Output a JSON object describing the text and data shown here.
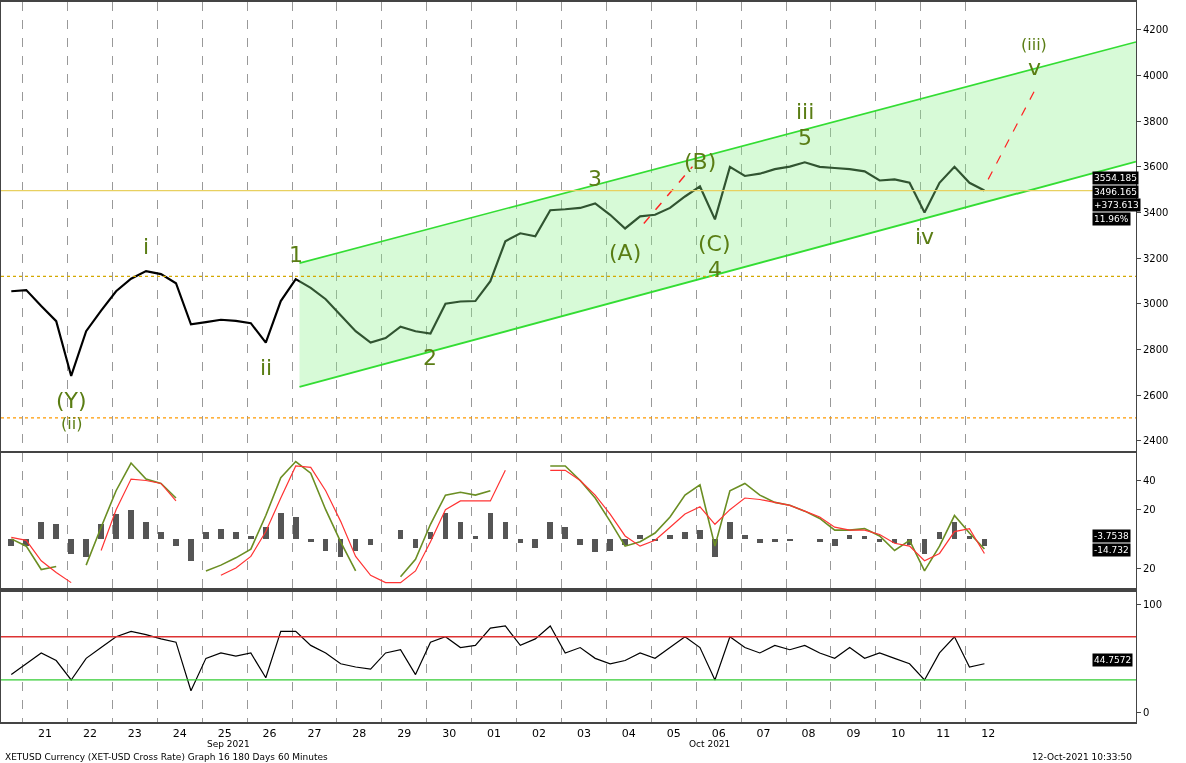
{
  "chart_data": [
    {
      "type": "line",
      "tick_labels": "y",
      "grid": "x",
      "xlim": [
        "2021-09-20T12:30",
        "2021-10-15T19:00"
      ],
      "ylim": [
        2356,
        4322
      ],
      "yticks": [
        2400,
        2600,
        2800,
        3000,
        3200,
        3400,
        3600,
        3800,
        4000,
        4200
      ],
      "xticks": [
        {
          "value": "2021-09-21T00:00",
          "label": null
        },
        {
          "value": "2021-09-22T00:00",
          "label": null
        },
        {
          "value": "2021-09-23T00:00",
          "label": null
        },
        {
          "value": "2021-09-24T00:00",
          "label": null
        },
        {
          "value": "2021-09-25T00:00",
          "label": null
        },
        {
          "value": "2021-09-26T00:00",
          "label": null
        },
        {
          "value": "2021-09-27T00:00",
          "label": null
        },
        {
          "value": "2021-09-28T00:00",
          "label": null
        },
        {
          "value": "2021-09-29T00:00",
          "label": null
        },
        {
          "value": "2021-09-30T00:00",
          "label": null
        },
        {
          "value": "2021-10-01T00:00",
          "label": null
        },
        {
          "value": "2021-10-02T00:00",
          "label": null
        },
        {
          "value": "2021-10-03T00:00",
          "label": null
        },
        {
          "value": "2021-10-04T00:00",
          "label": null
        },
        {
          "value": "2021-10-05T00:00",
          "label": null
        },
        {
          "value": "2021-10-06T00:00",
          "label": null
        },
        {
          "value": "2021-10-07T00:00",
          "label": null
        },
        {
          "value": "2021-10-08T00:00",
          "label": null
        },
        {
          "value": "2021-10-09T00:00",
          "label": null
        },
        {
          "value": "2021-10-10T00:00",
          "label": null
        },
        {
          "value": "2021-10-11T00:00",
          "label": null
        },
        {
          "value": "2021-10-12T00:00",
          "label": null
        }
      ],
      "x": [
        "2021-09-20T18:00",
        "2021-09-21T02:00",
        "2021-09-21T10:00",
        "2021-09-21T18:00",
        "2021-09-22T02:00",
        "2021-09-22T10:00",
        "2021-09-22T18:00",
        "2021-09-23T02:00",
        "2021-09-23T10:00",
        "2021-09-23T18:00",
        "2021-09-24T02:00",
        "2021-09-24T10:00",
        "2021-09-24T18:00",
        "2021-09-25T02:00",
        "2021-09-25T10:00",
        "2021-09-25T18:00",
        "2021-09-26T02:00",
        "2021-09-26T10:00",
        "2021-09-26T18:00",
        "2021-09-27T02:00",
        "2021-09-27T10:00",
        "2021-09-27T18:00",
        "2021-09-28T02:00",
        "2021-09-28T10:00",
        "2021-09-28T18:00",
        "2021-09-29T02:00",
        "2021-09-29T10:00",
        "2021-09-29T18:00",
        "2021-09-30T02:00",
        "2021-09-30T10:00",
        "2021-09-30T18:00",
        "2021-10-01T02:00",
        "2021-10-01T10:00",
        "2021-10-01T18:00",
        "2021-10-02T02:00",
        "2021-10-02T10:00",
        "2021-10-02T18:00",
        "2021-10-03T02:00",
        "2021-10-03T10:00",
        "2021-10-03T18:00",
        "2021-10-04T02:00",
        "2021-10-04T10:00",
        "2021-10-04T18:00",
        "2021-10-05T02:00",
        "2021-10-05T10:00",
        "2021-10-05T18:00",
        "2021-10-06T02:00",
        "2021-10-06T10:00",
        "2021-10-06T18:00",
        "2021-10-07T02:00",
        "2021-10-07T10:00",
        "2021-10-07T18:00",
        "2021-10-08T02:00",
        "2021-10-08T10:00",
        "2021-10-08T18:00",
        "2021-10-09T02:00",
        "2021-10-09T10:00",
        "2021-10-09T18:00",
        "2021-10-10T02:00",
        "2021-10-10T10:00",
        "2021-10-10T18:00",
        "2021-10-11T02:00",
        "2021-10-11T10:00",
        "2021-10-11T18:00",
        "2021-10-12T02:00",
        "2021-10-12T10:00"
      ],
      "series": [
        {
          "color": "#000000",
          "values": [
            3055,
            3060,
            2990,
            2924,
            2684,
            2880,
            2970,
            3055,
            3110,
            3143,
            3130,
            3090,
            2910,
            2920,
            2930,
            2925,
            2915,
            2830,
            3012,
            3108,
            3070,
            3020,
            2950,
            2880,
            2830,
            2850,
            2900,
            2880,
            2870,
            3000,
            3010,
            3012,
            3099,
            3274,
            3309,
            3296,
            3410,
            3414,
            3420,
            3440,
            3390,
            3330,
            3383,
            3390,
            3420,
            3470,
            3514,
            3370,
            3600,
            3560,
            3570,
            3590,
            3601,
            3620,
            3600,
            3595,
            3590,
            3580,
            3540,
            3545,
            3530,
            3400,
            3530,
            3600,
            3530,
            3496
          ]
        },
        {
          "color": "#33dd33",
          "x": [
            "2021-09-27T04:00",
            "2021-10-15T19:00"
          ],
          "values": [
            2636,
            3623
          ]
        },
        {
          "type": "area",
          "color": "#33dd33",
          "x": [
            "2021-09-27T04:00",
            "2021-10-15T19:00"
          ],
          "values": [
            3178,
            4147
          ]
        },
        {
          "color": "#ff2222",
          "line_style": "dashed",
          "x": [
            "2021-10-04T20:00",
            "2021-10-05T22:00"
          ],
          "values": [
            3352,
            3601
          ]
        },
        {
          "color": "#ff2222",
          "line_style": "dashed",
          "x": [
            "2021-10-12T12:00",
            "2021-10-13T12:30"
          ],
          "values": [
            3545,
            3929
          ]
        }
      ],
      "ref_lines": [
        {
          "axis": "y",
          "value": 3120,
          "color": "#d4a800",
          "line_style": "dotted"
        },
        {
          "axis": "y",
          "value": 2500,
          "color": "#ff9900",
          "line_style": "dotted"
        },
        {
          "axis": "y",
          "value": 3496,
          "color": "#e8d060",
          "line_style": "solid"
        }
      ],
      "annotations": [
        {
          "text": "(Y)",
          "x": "2021-09-22T02:00",
          "y": 2684
        },
        {
          "text": "(ii)",
          "x": "2021-09-22T02:00",
          "y": 2684
        },
        {
          "text": "i",
          "x": "2021-09-23T18:00",
          "y": 3143
        },
        {
          "text": "ii",
          "x": "2021-09-26T10:00",
          "y": 2830
        },
        {
          "text": "1",
          "x": "2021-09-27T02:00",
          "y": 3108
        },
        {
          "text": "2",
          "x": "2021-09-30T02:00",
          "y": 2870
        },
        {
          "text": "3",
          "x": "2021-10-03T18:00",
          "y": 3440
        },
        {
          "text": "(A)",
          "x": "2021-10-04T10:00",
          "y": 3330
        },
        {
          "text": "(B)",
          "x": "2021-10-06T02:00",
          "y": 3514
        },
        {
          "text": "(C)",
          "x": "2021-10-06T10:00",
          "y": 3370
        },
        {
          "text": "4",
          "x": "2021-10-06T10:00",
          "y": 3370
        },
        {
          "text": "5",
          "x": "2021-10-08T10:00",
          "y": 3620
        },
        {
          "text": "iii",
          "x": "2021-10-08T10:00",
          "y": 3620
        },
        {
          "text": "iv",
          "x": "2021-10-11T02:00",
          "y": 3400
        },
        {
          "text": "v",
          "x": "2021-10-13T12:30",
          "y": 3929
        },
        {
          "text": "(iii)",
          "x": "2021-10-13T12:30",
          "y": 3929
        },
        "3554.185",
        "3496.165",
        "+373.613",
        "11.96%"
      ]
    },
    {
      "type": "line",
      "tick_labels": "y",
      "grid": "x",
      "xlim": [
        "2021-09-20T12:30",
        "2021-10-15T19:00"
      ],
      "ylim": [
        -34,
        59
      ],
      "yticks": [
        40,
        20,
        {
          "value": -20,
          "label": "20"
        }
      ],
      "xticks": [
        {
          "value": "2021-09-21T00:00",
          "label": null
        },
        {
          "value": "2021-09-22T00:00",
          "label": null
        },
        {
          "value": "2021-09-23T00:00",
          "label": null
        },
        {
          "value": "2021-09-24T00:00",
          "label": null
        },
        {
          "value": "2021-09-25T00:00",
          "label": null
        },
        {
          "value": "2021-09-26T00:00",
          "label": null
        },
        {
          "value": "2021-09-27T00:00",
          "label": null
        },
        {
          "value": "2021-09-28T00:00",
          "label": null
        },
        {
          "value": "2021-09-29T00:00",
          "label": null
        },
        {
          "value": "2021-09-30T00:00",
          "label": null
        },
        {
          "value": "2021-10-01T00:00",
          "label": null
        },
        {
          "value": "2021-10-02T00:00",
          "label": null
        },
        {
          "value": "2021-10-03T00:00",
          "label": null
        },
        {
          "value": "2021-10-04T00:00",
          "label": null
        },
        {
          "value": "2021-10-05T00:00",
          "label": null
        },
        {
          "value": "2021-10-06T00:00",
          "label": null
        },
        {
          "value": "2021-10-07T00:00",
          "label": null
        },
        {
          "value": "2021-10-08T00:00",
          "label": null
        },
        {
          "value": "2021-10-09T00:00",
          "label": null
        },
        {
          "value": "2021-10-10T00:00",
          "label": null
        },
        {
          "value": "2021-10-11T00:00",
          "label": null
        },
        {
          "value": "2021-10-12T00:00",
          "label": null
        }
      ],
      "x": [
        "2021-09-20T18:00",
        "2021-09-21T02:00",
        "2021-09-21T10:00",
        "2021-09-21T18:00",
        "2021-09-22T02:00",
        "2021-09-22T10:00",
        "2021-09-22T18:00",
        "2021-09-23T02:00",
        "2021-09-23T10:00",
        "2021-09-23T18:00",
        "2021-09-24T02:00",
        "2021-09-24T10:00",
        "2021-09-24T18:00",
        "2021-09-25T02:00",
        "2021-09-25T10:00",
        "2021-09-25T18:00",
        "2021-09-26T02:00",
        "2021-09-26T10:00",
        "2021-09-26T18:00",
        "2021-09-27T02:00",
        "2021-09-27T10:00",
        "2021-09-27T18:00",
        "2021-09-28T02:00",
        "2021-09-28T10:00",
        "2021-09-28T18:00",
        "2021-09-29T02:00",
        "2021-09-29T10:00",
        "2021-09-29T18:00",
        "2021-09-30T02:00",
        "2021-09-30T10:00",
        "2021-09-30T18:00",
        "2021-10-01T02:00",
        "2021-10-01T10:00",
        "2021-10-01T18:00",
        "2021-10-02T02:00",
        "2021-10-02T10:00",
        "2021-10-02T18:00",
        "2021-10-03T02:00",
        "2021-10-03T10:00",
        "2021-10-03T18:00",
        "2021-10-04T02:00",
        "2021-10-04T10:00",
        "2021-10-04T18:00",
        "2021-10-05T02:00",
        "2021-10-05T10:00",
        "2021-10-05T18:00",
        "2021-10-06T02:00",
        "2021-10-06T10:00",
        "2021-10-06T18:00",
        "2021-10-07T02:00",
        "2021-10-07T10:00",
        "2021-10-07T18:00",
        "2021-10-08T02:00",
        "2021-10-08T10:00",
        "2021-10-08T18:00",
        "2021-10-09T02:00",
        "2021-10-09T10:00",
        "2021-10-09T18:00",
        "2021-10-10T02:00",
        "2021-10-10T10:00",
        "2021-10-10T18:00",
        "2021-10-11T02:00",
        "2021-10-11T10:00",
        "2021-10-11T18:00",
        "2021-10-12T02:00",
        "2021-10-12T10:00"
      ],
      "series": [
        {
          "type": "bar",
          "color": "#555555",
          "values": [
            -5,
            -5,
            12,
            10,
            -10,
            -12,
            10,
            17,
            20,
            12,
            5,
            -5,
            -15,
            5,
            7,
            5,
            2,
            8,
            18,
            15,
            -2,
            -8,
            -12,
            -8,
            -4,
            0,
            6,
            -6,
            5,
            18,
            12,
            2,
            18,
            12,
            -3,
            -6,
            12,
            8,
            -4,
            -9,
            -8,
            -4,
            3,
            -1,
            3,
            5,
            6,
            -12,
            12,
            3,
            -3,
            -2,
            -1,
            0,
            -2,
            -5,
            3,
            2,
            -2,
            -3,
            -4,
            -10,
            5,
            12,
            2,
            -5
          ]
        },
        {
          "color": "#6b8e23",
          "values": [
            0,
            -5,
            -21,
            -19,
            null,
            -18,
            8,
            33,
            52,
            41,
            38,
            28,
            null,
            -22,
            -18,
            -13,
            -7,
            16,
            42,
            53,
            45,
            20,
            -2,
            -22,
            null,
            null,
            -26,
            -14,
            10,
            30,
            32,
            30,
            33,
            null,
            null,
            null,
            50,
            50,
            40,
            28,
            12,
            -5,
            -2,
            4,
            15,
            30,
            37,
            -5,
            33,
            38,
            30,
            25,
            23,
            19,
            14,
            6,
            6,
            7,
            2,
            -8,
            -1,
            -22,
            -5,
            16,
            4,
            -7
          ]
        },
        {
          "color": "#ff3333",
          "values": [
            1,
            -1,
            -15,
            -23,
            -30,
            null,
            -8,
            20,
            41,
            40,
            38,
            26,
            null,
            null,
            -25,
            -20,
            -12,
            5,
            28,
            50,
            49,
            33,
            12,
            -12,
            -25,
            -30,
            -30,
            -22,
            -2,
            20,
            26,
            26,
            26,
            47,
            null,
            null,
            47,
            47,
            40,
            30,
            17,
            2,
            -5,
            -1,
            8,
            17,
            22,
            10,
            20,
            28,
            27,
            25,
            23,
            19,
            15,
            8,
            6,
            6,
            3,
            -3,
            -5,
            -15,
            -10,
            5,
            7,
            -10
          ]
        }
      ],
      "annotations": [
        "-3.7538",
        "-14.732"
      ]
    },
    {
      "type": "line",
      "grid": "x",
      "xlim": [
        "2021-09-20T12:30",
        "2021-10-15T19:00"
      ],
      "ylim": [
        -9,
        111
      ],
      "yticks": [
        0,
        100
      ],
      "xticks": [
        {
          "value": "2021-09-21T00:00",
          "label": null
        },
        {
          "value": "2021-09-22T00:00",
          "label": null
        },
        {
          "value": "2021-09-23T00:00",
          "label": null
        },
        {
          "value": "2021-09-24T00:00",
          "label": null
        },
        {
          "value": "2021-09-25T00:00",
          "label": null
        },
        {
          "value": "2021-09-26T00:00",
          "label": null
        },
        {
          "value": "2021-09-27T00:00",
          "label": null
        },
        {
          "value": "2021-09-28T00:00",
          "label": null
        },
        {
          "value": "2021-09-29T00:00",
          "label": null
        },
        {
          "value": "2021-09-30T00:00",
          "label": null
        },
        {
          "value": "2021-10-01T00:00",
          "label": null
        },
        {
          "value": "2021-10-02T00:00",
          "label": null
        },
        {
          "value": "2021-10-03T00:00",
          "label": null
        },
        {
          "value": "2021-10-04T00:00",
          "label": null
        },
        {
          "value": "2021-10-05T00:00",
          "label": null
        },
        {
          "value": "2021-10-06T00:00",
          "label": null
        },
        {
          "value": "2021-10-07T00:00",
          "label": null
        },
        {
          "value": "2021-10-08T00:00",
          "label": null
        },
        {
          "value": "2021-10-09T00:00",
          "label": null
        },
        {
          "value": "2021-10-10T00:00",
          "label": null
        },
        {
          "value": "2021-10-11T00:00",
          "label": null
        },
        {
          "value": "2021-10-12T00:00",
          "label": null
        },
        {
          "value": "2021-09-21T12:00",
          "label": "21"
        },
        {
          "value": "2021-09-22T12:00",
          "label": "22"
        },
        {
          "value": "2021-09-23T12:00",
          "label": "23"
        },
        {
          "value": "2021-09-24T12:00",
          "label": "24"
        },
        {
          "value": "2021-09-25T12:00",
          "label": "25"
        },
        {
          "value": "2021-09-26T12:00",
          "label": "26"
        },
        {
          "value": "2021-09-27T12:00",
          "label": "27"
        },
        {
          "value": "2021-09-28T12:00",
          "label": "28"
        },
        {
          "value": "2021-09-29T12:00",
          "label": "29"
        },
        {
          "value": "2021-09-30T12:00",
          "label": "30"
        },
        {
          "value": "2021-10-01T12:00",
          "label": "01"
        },
        {
          "value": "2021-10-02T12:00",
          "label": "02"
        },
        {
          "value": "2021-10-03T12:00",
          "label": "03"
        },
        {
          "value": "2021-10-04T12:00",
          "label": "04"
        },
        {
          "value": "2021-10-05T12:00",
          "label": "05"
        },
        {
          "value": "2021-10-06T12:00",
          "label": "06"
        },
        {
          "value": "2021-10-07T12:00",
          "label": "07"
        },
        {
          "value": "2021-10-08T12:00",
          "label": "08"
        },
        {
          "value": "2021-10-09T12:00",
          "label": "09"
        },
        {
          "value": "2021-10-10T12:00",
          "label": "10"
        },
        {
          "value": "2021-10-11T12:00",
          "label": "11"
        },
        {
          "value": "2021-10-12T12:00",
          "label": "12"
        }
      ],
      "x": [
        "2021-09-20T18:00",
        "2021-09-21T02:00",
        "2021-09-21T10:00",
        "2021-09-21T18:00",
        "2021-09-22T02:00",
        "2021-09-22T10:00",
        "2021-09-22T18:00",
        "2021-09-23T02:00",
        "2021-09-23T10:00",
        "2021-09-23T18:00",
        "2021-09-24T02:00",
        "2021-09-24T10:00",
        "2021-09-24T18:00",
        "2021-09-25T02:00",
        "2021-09-25T10:00",
        "2021-09-25T18:00",
        "2021-09-26T02:00",
        "2021-09-26T10:00",
        "2021-09-26T18:00",
        "2021-09-27T02:00",
        "2021-09-27T10:00",
        "2021-09-27T18:00",
        "2021-09-28T02:00",
        "2021-09-28T10:00",
        "2021-09-28T18:00",
        "2021-09-29T02:00",
        "2021-09-29T10:00",
        "2021-09-29T18:00",
        "2021-09-30T02:00",
        "2021-09-30T10:00",
        "2021-09-30T18:00",
        "2021-10-01T02:00",
        "2021-10-01T10:00",
        "2021-10-01T18:00",
        "2021-10-02T02:00",
        "2021-10-02T10:00",
        "2021-10-02T18:00",
        "2021-10-03T02:00",
        "2021-10-03T10:00",
        "2021-10-03T18:00",
        "2021-10-04T02:00",
        "2021-10-04T10:00",
        "2021-10-04T18:00",
        "2021-10-05T02:00",
        "2021-10-05T10:00",
        "2021-10-05T18:00",
        "2021-10-06T02:00",
        "2021-10-06T10:00",
        "2021-10-06T18:00",
        "2021-10-07T02:00",
        "2021-10-07T10:00",
        "2021-10-07T18:00",
        "2021-10-08T02:00",
        "2021-10-08T10:00",
        "2021-10-08T18:00",
        "2021-10-09T02:00",
        "2021-10-09T10:00",
        "2021-10-09T18:00",
        "2021-10-10T02:00",
        "2021-10-10T10:00",
        "2021-10-10T18:00",
        "2021-10-11T02:00",
        "2021-10-11T10:00",
        "2021-10-11T18:00",
        "2021-10-12T02:00",
        "2021-10-12T10:00"
      ],
      "series": [
        {
          "color": "#000000",
          "values": [
            35,
            45,
            55,
            48,
            30,
            50,
            60,
            70,
            75,
            72,
            68,
            65,
            20,
            50,
            55,
            52,
            55,
            32,
            75,
            75,
            62,
            55,
            45,
            42,
            40,
            55,
            58,
            35,
            65,
            70,
            60,
            62,
            78,
            80,
            62,
            68,
            80,
            55,
            60,
            50,
            45,
            48,
            55,
            50,
            60,
            70,
            60,
            30,
            70,
            60,
            55,
            62,
            58,
            62,
            55,
            50,
            60,
            50,
            55,
            50,
            45,
            30,
            55,
            70,
            42,
            45
          ]
        }
      ],
      "ref_lines": [
        {
          "axis": "y",
          "value": 70,
          "color": "#dd3333",
          "line_style": "solid"
        },
        {
          "axis": "y",
          "value": 30,
          "color": "#33cc33",
          "line_style": "solid"
        }
      ],
      "annotations": [
        "44.7572",
        "Sep 2021",
        "Oct 2021",
        "XETUSD Currency (XET-USD Cross Rate) Graph 16 180 Days 60 Minutes",
        "12-Oct-2021 10:33:50"
      ]
    }
  ]
}
